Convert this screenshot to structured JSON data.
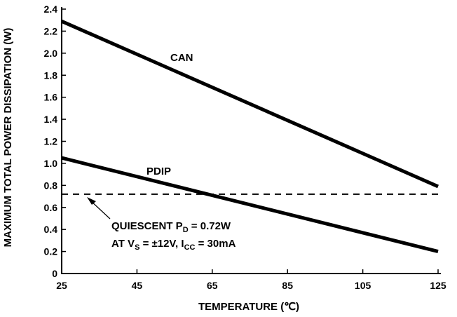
{
  "chart_data": {
    "type": "line",
    "xlabel": "TEMPERATURE (℃)",
    "ylabel": "MAXIMUM TOTAL POWER DISSIPATION (W)",
    "xlim": [
      25,
      125
    ],
    "ylim": [
      0,
      2.4
    ],
    "xticks": [
      25,
      45,
      65,
      85,
      105,
      125
    ],
    "yticks": [
      0,
      0.2,
      0.4,
      0.6,
      0.8,
      1.0,
      1.2,
      1.4,
      1.6,
      1.8,
      2.0,
      2.2,
      2.4
    ],
    "ytick_labels": [
      "0",
      "0.2",
      "0.4",
      "0.6",
      "0.8",
      "1.0",
      "1.2",
      "1.4",
      "1.6",
      "1.8",
      "2.0",
      "2.2",
      "2.4"
    ],
    "grid": false,
    "series": [
      {
        "name": "CAN",
        "x": [
          25,
          125
        ],
        "y": [
          2.29,
          0.79
        ],
        "style": "solid"
      },
      {
        "name": "PDIP",
        "x": [
          25,
          125
        ],
        "y": [
          1.05,
          0.2
        ],
        "style": "solid"
      }
    ],
    "reference_line": {
      "y": 0.72,
      "style": "dashed"
    },
    "annotation": {
      "line1": {
        "prefix": "QUIESCENT P",
        "sub": "D",
        "suffix": " = 0.72W"
      },
      "line2": {
        "p1": "AT V",
        "s1": "S",
        "p2": " = ±12V, I",
        "s2": "CC",
        "p3": " = 30mA"
      }
    }
  }
}
